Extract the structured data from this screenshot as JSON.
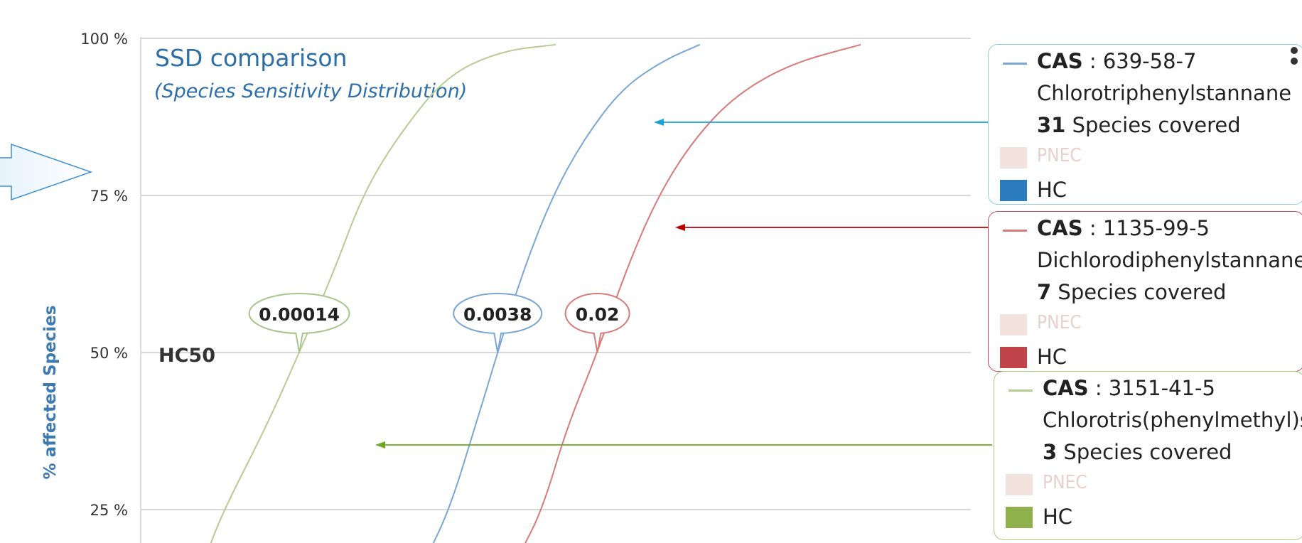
{
  "chart_data": {
    "type": "line",
    "title": "SSD comparison",
    "subtitle": "(Species Sensitivity Distribution)",
    "ylabel": "% affected Species",
    "y_ticks": [
      "100 %",
      "75 %",
      "50 %",
      "25 %"
    ],
    "ylim": [
      18,
      100
    ],
    "x_scale": "log",
    "xlim": [
      1e-05,
      10
    ],
    "hc50_label": "HC50",
    "grid": true,
    "series": [
      {
        "name": "CAS : 639-58-7",
        "color": "#7aa6d6",
        "label_color": "#7aa6d6",
        "hc50": "0.0038",
        "hc50_value": 0.0038,
        "points": [
          [
            0.0012,
            18
          ],
          [
            0.0017,
            25
          ],
          [
            0.0026,
            38
          ],
          [
            0.0038,
            50
          ],
          [
            0.0058,
            63
          ],
          [
            0.0095,
            75
          ],
          [
            0.016,
            84
          ],
          [
            0.03,
            92
          ],
          [
            0.06,
            96.5
          ],
          [
            0.11,
            99
          ]
        ]
      },
      {
        "name": "CAS : 1135-99-5",
        "color": "#d97a7a",
        "label_color": "#d97a7a",
        "hc50": "0.02",
        "hc50_value": 0.02,
        "points": [
          [
            0.0055,
            18
          ],
          [
            0.008,
            25
          ],
          [
            0.012,
            38
          ],
          [
            0.02,
            50
          ],
          [
            0.032,
            63
          ],
          [
            0.055,
            75
          ],
          [
            0.1,
            84
          ],
          [
            0.2,
            91
          ],
          [
            0.5,
            96
          ],
          [
            1.6,
            99
          ]
        ]
      },
      {
        "name": "CAS : 3151-41-5",
        "color": "#b6cc92",
        "label_color": "#a8c48a",
        "hc50": "0.00014",
        "hc50_value": 0.00014,
        "points": [
          [
            3e-05,
            18
          ],
          [
            4e-05,
            25
          ],
          [
            8e-05,
            38
          ],
          [
            0.00014,
            50
          ],
          [
            0.00025,
            63
          ],
          [
            0.0004,
            75
          ],
          [
            0.0007,
            84
          ],
          [
            0.0016,
            94
          ],
          [
            0.004,
            98
          ],
          [
            0.01,
            99
          ]
        ]
      }
    ]
  },
  "legend": [
    {
      "id": "cas-639",
      "cas_label": "CAS",
      "cas_number": " : 639-58-7",
      "name": "Chlorotriphenylstannane",
      "species_count": "31",
      "species_text": " Species covered",
      "pnec": "PNEC",
      "hc": "HC",
      "line_color": "#7aa6d6",
      "hc_color": "#2b7bbf",
      "border_color": "#8fd0e0",
      "arrow_color": "#17a3d8"
    },
    {
      "id": "cas-1135",
      "cas_label": "CAS",
      "cas_number": " : 1135-99-5",
      "name": "Dichlorodiphenylstannane",
      "species_count": "7",
      "species_text": " Species covered",
      "pnec": "PNEC",
      "hc": "HC",
      "line_color": "#d97a7a",
      "hc_color": "#c0444a",
      "border_color": "#c04a5a",
      "arrow_color": "#b80000"
    },
    {
      "id": "cas-3151",
      "cas_label": "CAS",
      "cas_number": " : 3151-41-5",
      "name": "Chlorotris(phenylmethyl)s…",
      "species_count": "3",
      "species_text": " Species covered",
      "pnec": "PNEC",
      "hc": "HC",
      "line_color": "#b6cc92",
      "hc_color": "#8fb04a",
      "border_color": "#a8cc78",
      "arrow_color": "#6aa820"
    }
  ],
  "colors": {
    "pnec_swatch": "#f2e3df",
    "pnec_text": "#e8d0cc",
    "title": "#2c6ea8",
    "axis_title": "#3d7ab0",
    "hc50_text": "#333333",
    "grid": "#d8d8d8"
  }
}
